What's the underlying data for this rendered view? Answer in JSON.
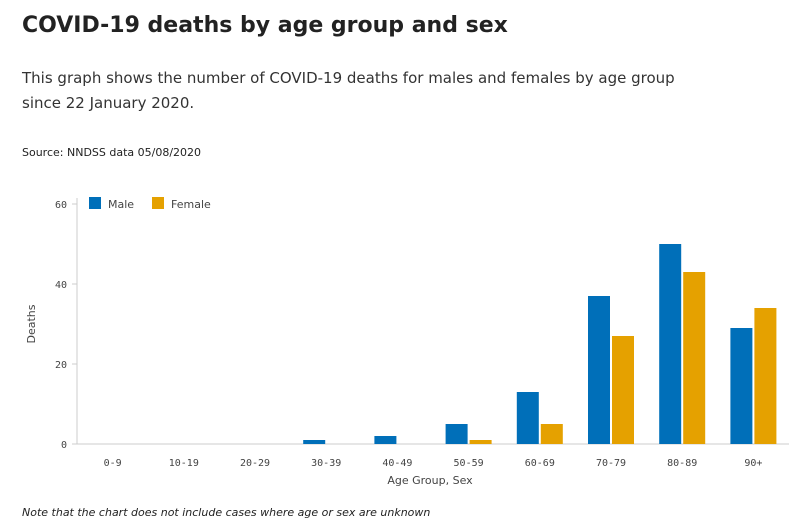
{
  "header": {
    "title": "COVID-19 deaths by age group and sex",
    "description": "This graph shows the number of COVID-19 deaths for males and females by age group since 22 January 2020.",
    "source": "Source: NNDSS data 05/08/2020"
  },
  "footer": {
    "note": "Note that the chart does not include cases where age or sex are unknown"
  },
  "chart_data": {
    "type": "bar",
    "title": "COVID-19 deaths by age group and sex",
    "xlabel": "Age Group, Sex",
    "ylabel": "Deaths",
    "categories": [
      "0-9",
      "10-19",
      "20-29",
      "30-39",
      "40-49",
      "50-59",
      "60-69",
      "70-79",
      "80-89",
      "90+"
    ],
    "series": [
      {
        "name": "Male",
        "color": "#006fb9",
        "values": [
          0,
          0,
          0,
          1,
          2,
          5,
          13,
          37,
          50,
          29
        ]
      },
      {
        "name": "Female",
        "color": "#e5a100",
        "values": [
          0,
          0,
          0,
          0,
          0,
          1,
          5,
          27,
          43,
          34
        ]
      }
    ],
    "ylim": [
      0,
      60
    ],
    "yticks": [
      0,
      20,
      40,
      60
    ],
    "grid": false,
    "legend": "top-left"
  }
}
